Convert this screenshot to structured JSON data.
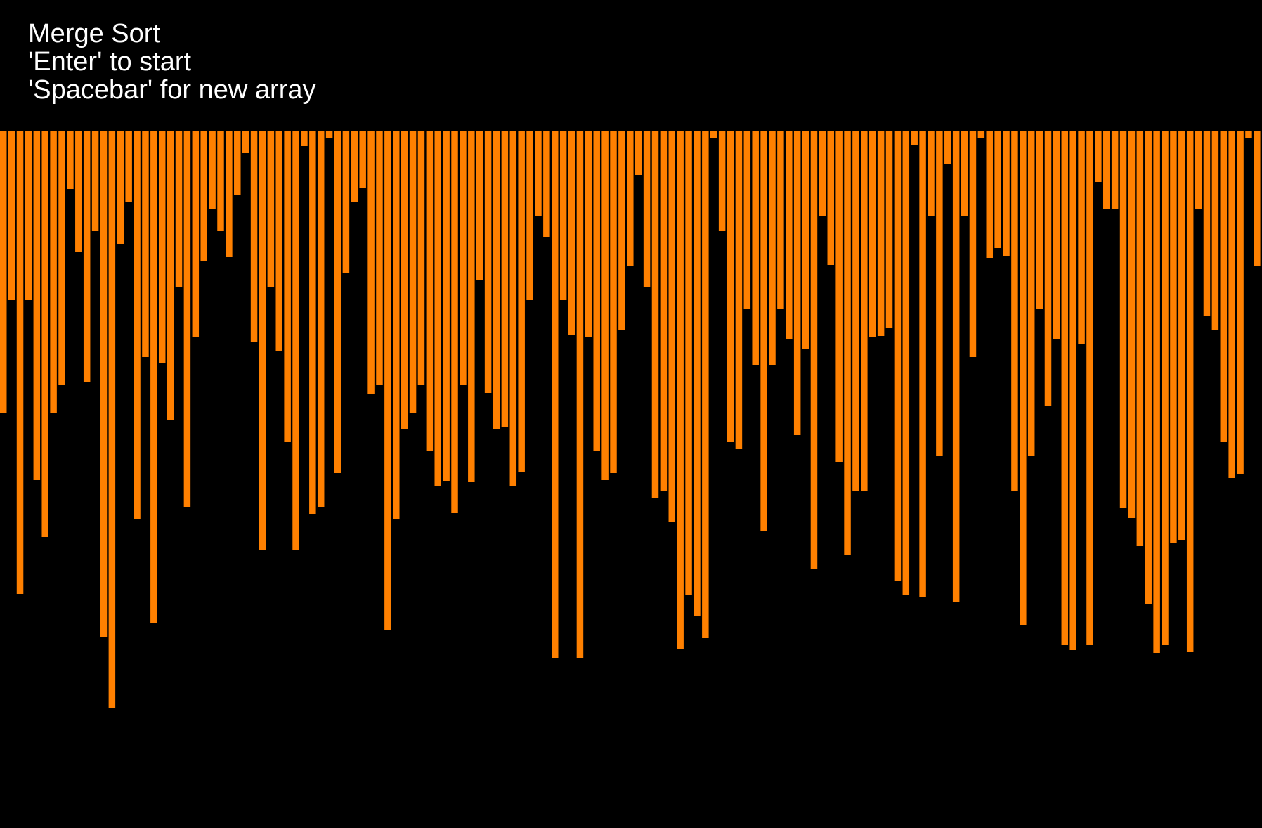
{
  "hud": {
    "title": "Merge Sort",
    "start_hint": "'Enter' to start",
    "new_array_hint": "'Spacebar' for new array"
  },
  "colors": {
    "background": "#000000",
    "bar": "#ff8000",
    "text": "#ffffff"
  },
  "array": [
    400,
    240,
    658,
    240,
    496,
    577,
    400,
    361,
    82,
    172,
    356,
    142,
    719,
    820,
    160,
    101,
    552,
    321,
    699,
    330,
    411,
    221,
    535,
    292,
    185,
    111,
    141,
    178,
    90,
    31,
    300,
    595,
    221,
    312,
    442,
    595,
    21,
    544,
    535,
    10,
    486,
    202,
    101,
    81,
    374,
    361,
    709,
    552,
    424,
    401,
    361,
    454,
    505,
    497,
    543,
    361,
    499,
    212,
    372,
    424,
    421,
    505,
    485,
    240,
    120,
    150,
    749,
    240,
    290,
    749,
    292,
    454,
    496,
    486,
    282,
    192,
    62,
    221,
    522,
    512,
    555,
    736,
    660,
    690,
    720,
    10,
    142,
    442,
    452,
    252,
    332,
    569,
    332,
    252,
    295,
    432,
    310,
    622,
    120,
    190,
    471,
    602,
    511,
    511,
    292,
    291,
    279,
    639,
    660,
    20,
    663,
    120,
    462,
    46,
    670,
    120,
    321,
    10,
    180,
    166,
    177,
    512,
    702,
    462,
    252,
    391,
    295,
    731,
    738,
    302,
    731,
    72,
    111,
    111,
    536,
    550,
    590,
    672,
    742,
    731,
    585,
    581,
    740,
    111,
    262,
    282,
    442,
    493,
    487,
    10,
    192
  ]
}
